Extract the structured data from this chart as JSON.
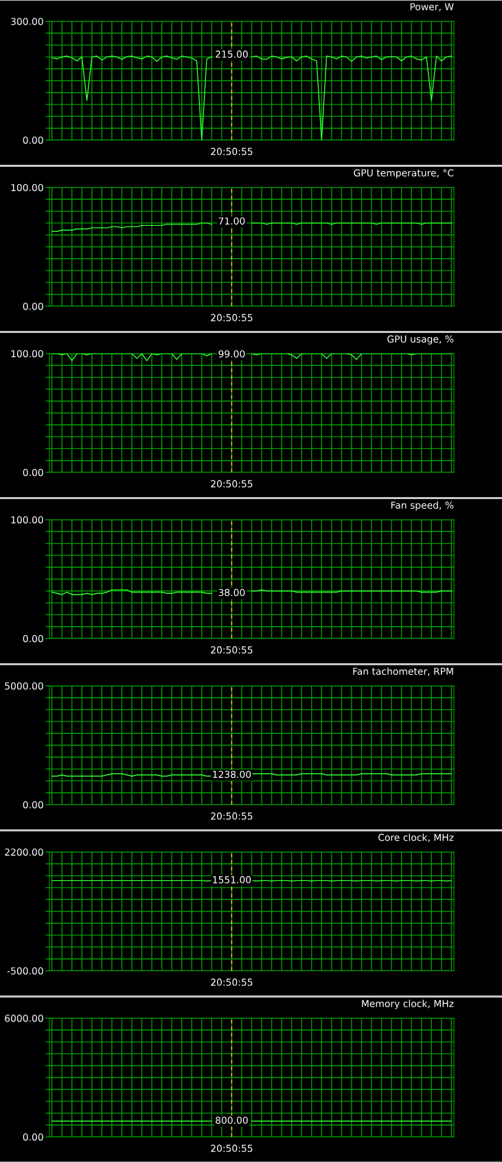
{
  "chart_data": [
    {
      "type": "line",
      "title": "Power, W",
      "categories": [
        null,
        null,
        null,
        null,
        null,
        null,
        null,
        null,
        null,
        null,
        null,
        null,
        null,
        null,
        null,
        null,
        null,
        null,
        null,
        null,
        null,
        null,
        null,
        null,
        null,
        null,
        null,
        null,
        null,
        null,
        null,
        null,
        null,
        null,
        null,
        null,
        "20:50:55",
        null,
        null,
        null,
        null,
        null,
        null,
        null,
        null,
        null,
        null,
        null,
        null,
        null,
        null,
        null,
        null,
        null,
        null,
        null,
        null,
        null,
        null,
        null,
        null,
        null,
        null,
        null,
        null,
        null,
        null,
        null,
        null,
        null,
        null,
        null,
        null,
        null,
        null,
        null,
        null,
        null,
        null,
        null,
        null
      ],
      "series": [
        {
          "color": "#33ff33",
          "values": [
            208,
            205,
            210,
            212,
            208,
            200,
            210,
            100,
            210,
            212,
            202,
            210,
            212,
            210,
            204,
            211,
            212,
            208,
            205,
            212,
            210,
            199,
            210,
            212,
            208,
            204,
            212,
            210,
            207,
            200,
            0,
            205,
            210,
            null,
            null,
            null,
            null,
            null,
            null,
            null,
            210,
            212,
            205,
            204,
            212,
            210,
            205,
            209,
            210,
            200,
            210,
            212,
            205,
            200,
            0,
            212,
            210,
            205,
            212,
            210,
            199,
            210,
            212,
            207,
            210,
            212,
            203,
            210,
            211,
            210,
            200,
            210,
            212,
            205,
            202,
            210,
            100,
            212,
            200,
            210,
            212
          ]
        }
      ],
      "ylim": [
        0,
        300
      ],
      "yticks": [
        {
          "value": 0,
          "label": "0.00"
        },
        {
          "value": 30,
          "label": null
        },
        {
          "value": 60,
          "label": null
        },
        {
          "value": 90,
          "label": null
        },
        {
          "value": 120,
          "label": null
        },
        {
          "value": 150,
          "label": null
        },
        {
          "value": 180,
          "label": null
        },
        {
          "value": 210,
          "label": null
        },
        {
          "value": 240,
          "label": null
        },
        {
          "value": 270,
          "label": null
        },
        {
          "value": 300,
          "label": "300.00"
        }
      ],
      "grid": true,
      "legend": false,
      "ref_lines": [
        {
          "axis": "x",
          "value": "20:50:55",
          "color": "#ffd700",
          "line_style": "dashed"
        }
      ],
      "annotations": [
        {
          "text": "215.00",
          "x": "20:50:55",
          "y": 215
        }
      ]
    },
    {
      "type": "line",
      "title": "GPU temperature, °C",
      "categories": [
        null,
        null,
        null,
        null,
        null,
        null,
        null,
        null,
        null,
        null,
        null,
        null,
        null,
        null,
        null,
        null,
        null,
        null,
        null,
        null,
        null,
        null,
        null,
        null,
        null,
        null,
        null,
        null,
        null,
        null,
        null,
        null,
        null,
        null,
        null,
        null,
        "20:50:55",
        null,
        null,
        null,
        null,
        null,
        null,
        null,
        null,
        null,
        null,
        null,
        null,
        null,
        null,
        null,
        null,
        null,
        null,
        null,
        null,
        null,
        null,
        null,
        null,
        null,
        null,
        null,
        null,
        null,
        null,
        null,
        null,
        null,
        null,
        null,
        null,
        null,
        null,
        null,
        null,
        null,
        null,
        null,
        null
      ],
      "series": [
        {
          "color": "#33ff33",
          "values": [
            63,
            63,
            64,
            64,
            64,
            65,
            65,
            65,
            66,
            66,
            66,
            66,
            67,
            67,
            66,
            67,
            67,
            67,
            68,
            68,
            68,
            68,
            68,
            69,
            69,
            69,
            69,
            69,
            69,
            69,
            70,
            70,
            69,
            null,
            null,
            null,
            null,
            null,
            null,
            null,
            70,
            70,
            70,
            69,
            70,
            70,
            70,
            70,
            70,
            69,
            70,
            70,
            70,
            70,
            70,
            70,
            69,
            70,
            70,
            70,
            70,
            70,
            70,
            70,
            70,
            69,
            70,
            70,
            70,
            70,
            70,
            70,
            70,
            70,
            69,
            70,
            70,
            70,
            70,
            70,
            70
          ]
        }
      ],
      "ylim": [
        0,
        100
      ],
      "yticks": [
        {
          "value": 0,
          "label": "0.00"
        },
        {
          "value": 10,
          "label": null
        },
        {
          "value": 20,
          "label": null
        },
        {
          "value": 30,
          "label": null
        },
        {
          "value": 40,
          "label": null
        },
        {
          "value": 50,
          "label": null
        },
        {
          "value": 60,
          "label": null
        },
        {
          "value": 70,
          "label": null
        },
        {
          "value": 80,
          "label": null
        },
        {
          "value": 90,
          "label": null
        },
        {
          "value": 100,
          "label": "100.00"
        }
      ],
      "grid": true,
      "legend": false,
      "ref_lines": [
        {
          "axis": "x",
          "value": "20:50:55",
          "color": "#ffd700",
          "line_style": "dashed"
        }
      ],
      "annotations": [
        {
          "text": "71.00",
          "x": "20:50:55",
          "y": 71
        }
      ]
    },
    {
      "type": "line",
      "title": "GPU usage, %",
      "categories": [
        null,
        null,
        null,
        null,
        null,
        null,
        null,
        null,
        null,
        null,
        null,
        null,
        null,
        null,
        null,
        null,
        null,
        null,
        null,
        null,
        null,
        null,
        null,
        null,
        null,
        null,
        null,
        null,
        null,
        null,
        null,
        null,
        null,
        null,
        null,
        null,
        "20:50:55",
        null,
        null,
        null,
        null,
        null,
        null,
        null,
        null,
        null,
        null,
        null,
        null,
        null,
        null,
        null,
        null,
        null,
        null,
        null,
        null,
        null,
        null,
        null,
        null,
        null,
        null,
        null,
        null,
        null,
        null,
        null,
        null,
        null,
        null,
        null,
        null,
        null,
        null,
        null,
        null,
        null,
        null,
        null,
        null
      ],
      "series": [
        {
          "color": "#33ff33",
          "values": [
            100,
            100,
            99,
            100,
            94,
            100,
            100,
            99,
            100,
            100,
            100,
            100,
            100,
            100,
            100,
            100,
            100,
            96,
            100,
            94,
            100,
            99,
            100,
            100,
            100,
            95,
            100,
            100,
            100,
            100,
            100,
            98,
            100,
            null,
            null,
            null,
            null,
            null,
            null,
            null,
            100,
            99,
            100,
            100,
            100,
            100,
            100,
            100,
            99,
            96,
            100,
            100,
            100,
            100,
            100,
            96,
            100,
            100,
            100,
            100,
            99,
            95,
            100,
            100,
            100,
            100,
            100,
            100,
            100,
            100,
            100,
            100,
            99,
            100,
            100,
            100,
            100,
            100,
            100,
            100,
            100
          ]
        }
      ],
      "ylim": [
        0,
        100
      ],
      "yticks": [
        {
          "value": 0,
          "label": "0.00"
        },
        {
          "value": 10,
          "label": null
        },
        {
          "value": 20,
          "label": null
        },
        {
          "value": 30,
          "label": null
        },
        {
          "value": 40,
          "label": null
        },
        {
          "value": 50,
          "label": null
        },
        {
          "value": 60,
          "label": null
        },
        {
          "value": 70,
          "label": null
        },
        {
          "value": 80,
          "label": null
        },
        {
          "value": 90,
          "label": null
        },
        {
          "value": 100,
          "label": "100.00"
        }
      ],
      "grid": true,
      "legend": false,
      "ref_lines": [
        {
          "axis": "x",
          "value": "20:50:55",
          "color": "#ffd700",
          "line_style": "dashed"
        }
      ],
      "annotations": [
        {
          "text": "99.00",
          "x": "20:50:55",
          "y": 99
        }
      ]
    },
    {
      "type": "line",
      "title": "Fan speed, %",
      "categories": [
        null,
        null,
        null,
        null,
        null,
        null,
        null,
        null,
        null,
        null,
        null,
        null,
        null,
        null,
        null,
        null,
        null,
        null,
        null,
        null,
        null,
        null,
        null,
        null,
        null,
        null,
        null,
        null,
        null,
        null,
        null,
        null,
        null,
        null,
        null,
        null,
        "20:50:55",
        null,
        null,
        null,
        null,
        null,
        null,
        null,
        null,
        null,
        null,
        null,
        null,
        null,
        null,
        null,
        null,
        null,
        null,
        null,
        null,
        null,
        null,
        null,
        null,
        null,
        null,
        null,
        null,
        null,
        null,
        null,
        null,
        null,
        null,
        null,
        null,
        null,
        null,
        null,
        null,
        null,
        null,
        null,
        null
      ],
      "series": [
        {
          "color": "#33ff33",
          "values": [
            39,
            38,
            37,
            39,
            37,
            37,
            37,
            38,
            37,
            38,
            38,
            39,
            41,
            41,
            41,
            41,
            39,
            39,
            39,
            39,
            39,
            39,
            39,
            38,
            38,
            39,
            39,
            39,
            39,
            39,
            39,
            38,
            38,
            null,
            null,
            null,
            null,
            null,
            null,
            null,
            40,
            40,
            41,
            40,
            40,
            40,
            40,
            40,
            40,
            39,
            39,
            39,
            39,
            39,
            39,
            39,
            39,
            39,
            40,
            40,
            40,
            40,
            40,
            40,
            40,
            40,
            40,
            40,
            40,
            40,
            40,
            40,
            40,
            40,
            39,
            39,
            39,
            39,
            40,
            40,
            40
          ]
        }
      ],
      "ylim": [
        0,
        100
      ],
      "yticks": [
        {
          "value": 0,
          "label": "0.00"
        },
        {
          "value": 10,
          "label": null
        },
        {
          "value": 20,
          "label": null
        },
        {
          "value": 30,
          "label": null
        },
        {
          "value": 40,
          "label": null
        },
        {
          "value": 50,
          "label": null
        },
        {
          "value": 60,
          "label": null
        },
        {
          "value": 70,
          "label": null
        },
        {
          "value": 80,
          "label": null
        },
        {
          "value": 90,
          "label": null
        },
        {
          "value": 100,
          "label": "100.00"
        }
      ],
      "grid": true,
      "legend": false,
      "ref_lines": [
        {
          "axis": "x",
          "value": "20:50:55",
          "color": "#ffd700",
          "line_style": "dashed"
        }
      ],
      "annotations": [
        {
          "text": "38.00",
          "x": "20:50:55",
          "y": 38
        }
      ]
    },
    {
      "type": "line",
      "title": "Fan tachometer, RPM",
      "categories": [
        null,
        null,
        null,
        null,
        null,
        null,
        null,
        null,
        null,
        null,
        null,
        null,
        null,
        null,
        null,
        null,
        null,
        null,
        null,
        null,
        null,
        null,
        null,
        null,
        null,
        null,
        null,
        null,
        null,
        null,
        null,
        null,
        null,
        null,
        null,
        null,
        "20:50:55",
        null,
        null,
        null,
        null,
        null,
        null,
        null,
        null,
        null,
        null,
        null,
        null,
        null,
        null,
        null,
        null,
        null,
        null,
        null,
        null,
        null,
        null,
        null,
        null,
        null,
        null,
        null,
        null,
        null,
        null,
        null,
        null,
        null,
        null,
        null,
        null,
        null,
        null,
        null,
        null,
        null,
        null,
        null,
        null
      ],
      "series": [
        {
          "color": "#33ff33",
          "values": [
            1200,
            1200,
            1250,
            1200,
            1200,
            1200,
            1200,
            1200,
            1200,
            1200,
            1200,
            1250,
            1300,
            1300,
            1300,
            1250,
            1200,
            1250,
            1250,
            1250,
            1250,
            1250,
            1200,
            1200,
            1250,
            1250,
            1250,
            1250,
            1250,
            1250,
            1250,
            1200,
            1200,
            null,
            null,
            null,
            null,
            null,
            null,
            null,
            1300,
            1300,
            1300,
            1300,
            1300,
            1250,
            1250,
            1250,
            1250,
            1250,
            1300,
            1300,
            1300,
            1300,
            1300,
            1250,
            1250,
            1250,
            1250,
            1250,
            1250,
            1250,
            1300,
            1300,
            1300,
            1300,
            1300,
            1300,
            1250,
            1250,
            1250,
            1250,
            1250,
            1250,
            1300,
            1300,
            1300,
            1300,
            1300,
            1300,
            1300
          ]
        }
      ],
      "ylim": [
        0,
        5000
      ],
      "yticks": [
        {
          "value": 0,
          "label": "0.00"
        },
        {
          "value": 500,
          "label": null
        },
        {
          "value": 1000,
          "label": null
        },
        {
          "value": 1500,
          "label": null
        },
        {
          "value": 2000,
          "label": null
        },
        {
          "value": 2500,
          "label": null
        },
        {
          "value": 3000,
          "label": null
        },
        {
          "value": 3500,
          "label": null
        },
        {
          "value": 4000,
          "label": null
        },
        {
          "value": 4500,
          "label": null
        },
        {
          "value": 5000,
          "label": "5000.00"
        }
      ],
      "grid": true,
      "legend": false,
      "ref_lines": [
        {
          "axis": "x",
          "value": "20:50:55",
          "color": "#ffd700",
          "line_style": "dashed"
        }
      ],
      "annotations": [
        {
          "text": "1238.00",
          "x": "20:50:55",
          "y": 1238
        }
      ]
    },
    {
      "type": "line",
      "title": "Core clock, MHz",
      "categories": [
        null,
        null,
        null,
        null,
        null,
        null,
        null,
        null,
        null,
        null,
        null,
        null,
        null,
        null,
        null,
        null,
        null,
        null,
        null,
        null,
        null,
        null,
        null,
        null,
        null,
        null,
        null,
        null,
        null,
        null,
        null,
        null,
        null,
        null,
        null,
        null,
        "20:50:55",
        null,
        null,
        null,
        null,
        null,
        null,
        null,
        null,
        null,
        null,
        null,
        null,
        null,
        null,
        null,
        null,
        null,
        null,
        null,
        null,
        null,
        null,
        null,
        null,
        null,
        null,
        null,
        null,
        null,
        null,
        null,
        null,
        null,
        null,
        null,
        null,
        null,
        null,
        null,
        null,
        null,
        null,
        null,
        null
      ],
      "series": [
        {
          "color": "#33ff33",
          "values": [
            1550,
            1550,
            1550,
            1550,
            1550,
            1550,
            1550,
            1550,
            1550,
            1550,
            1550,
            1550,
            1550,
            1550,
            1550,
            1550,
            1550,
            1550,
            1550,
            1550,
            1550,
            1550,
            1550,
            1550,
            1550,
            1550,
            1550,
            1550,
            1550,
            1550,
            1550,
            1540,
            1550,
            null,
            null,
            null,
            null,
            null,
            null,
            null,
            1550,
            1540,
            1550,
            1550,
            1540,
            1550,
            1550,
            1550,
            1540,
            1550,
            1550,
            1550,
            1540,
            1550,
            1550,
            1550,
            1540,
            1550,
            1550,
            1550,
            1550,
            1540,
            1550,
            1550,
            1550,
            1540,
            1550,
            1550,
            1550,
            1540,
            1550,
            1550,
            1550,
            1540,
            1550,
            1550,
            1540,
            1550,
            1550,
            1540,
            1550
          ]
        }
      ],
      "ylim": [
        -500,
        2200
      ],
      "yticks": [
        {
          "value": -500,
          "label": "-500.00"
        },
        {
          "value": -230,
          "label": null
        },
        {
          "value": 40,
          "label": null
        },
        {
          "value": 310,
          "label": null
        },
        {
          "value": 580,
          "label": null
        },
        {
          "value": 850,
          "label": null
        },
        {
          "value": 1120,
          "label": null
        },
        {
          "value": 1390,
          "label": null
        },
        {
          "value": 1660,
          "label": null
        },
        {
          "value": 1930,
          "label": null
        },
        {
          "value": 2200,
          "label": "2200.00"
        }
      ],
      "grid": true,
      "legend": false,
      "ref_lines": [
        {
          "axis": "x",
          "value": "20:50:55",
          "color": "#ffd700",
          "line_style": "dashed"
        }
      ],
      "annotations": [
        {
          "text": "1551.00",
          "x": "20:50:55",
          "y": 1551
        }
      ]
    },
    {
      "type": "line",
      "title": "Memory clock, MHz",
      "categories": [
        null,
        null,
        null,
        null,
        null,
        null,
        null,
        null,
        null,
        null,
        null,
        null,
        null,
        null,
        null,
        null,
        null,
        null,
        null,
        null,
        null,
        null,
        null,
        null,
        null,
        null,
        null,
        null,
        null,
        null,
        null,
        null,
        null,
        null,
        null,
        null,
        "20:50:55",
        null,
        null,
        null,
        null,
        null,
        null,
        null,
        null,
        null,
        null,
        null,
        null,
        null,
        null,
        null,
        null,
        null,
        null,
        null,
        null,
        null,
        null,
        null,
        null,
        null,
        null,
        null,
        null,
        null,
        null,
        null,
        null,
        null,
        null,
        null,
        null,
        null,
        null,
        null,
        null,
        null,
        null,
        null,
        null
      ],
      "series": [
        {
          "color": "#33ff33",
          "values": [
            800,
            800,
            800,
            800,
            800,
            800,
            800,
            800,
            800,
            800,
            800,
            800,
            800,
            800,
            800,
            800,
            800,
            800,
            800,
            800,
            800,
            800,
            800,
            800,
            800,
            800,
            800,
            800,
            800,
            800,
            800,
            800,
            800,
            null,
            null,
            null,
            null,
            null,
            null,
            null,
            800,
            800,
            800,
            800,
            800,
            800,
            800,
            800,
            800,
            800,
            800,
            800,
            800,
            800,
            800,
            800,
            800,
            800,
            800,
            800,
            800,
            800,
            800,
            800,
            800,
            800,
            800,
            800,
            800,
            800,
            800,
            800,
            800,
            800,
            800,
            800,
            800,
            800,
            800,
            800,
            800
          ]
        }
      ],
      "ylim": [
        0,
        6000
      ],
      "yticks": [
        {
          "value": 0,
          "label": "0.00"
        },
        {
          "value": 600,
          "label": null
        },
        {
          "value": 1200,
          "label": null
        },
        {
          "value": 1800,
          "label": null
        },
        {
          "value": 2400,
          "label": null
        },
        {
          "value": 3000,
          "label": null
        },
        {
          "value": 3600,
          "label": null
        },
        {
          "value": 4200,
          "label": null
        },
        {
          "value": 4800,
          "label": null
        },
        {
          "value": 5400,
          "label": null
        },
        {
          "value": 6000,
          "label": "6000.00"
        }
      ],
      "grid": true,
      "legend": false,
      "ref_lines": [
        {
          "axis": "x",
          "value": "20:50:55",
          "color": "#ffd700",
          "line_style": "dashed"
        }
      ],
      "annotations": [
        {
          "text": "800.00",
          "x": "20:50:55",
          "y": 800
        }
      ]
    }
  ]
}
